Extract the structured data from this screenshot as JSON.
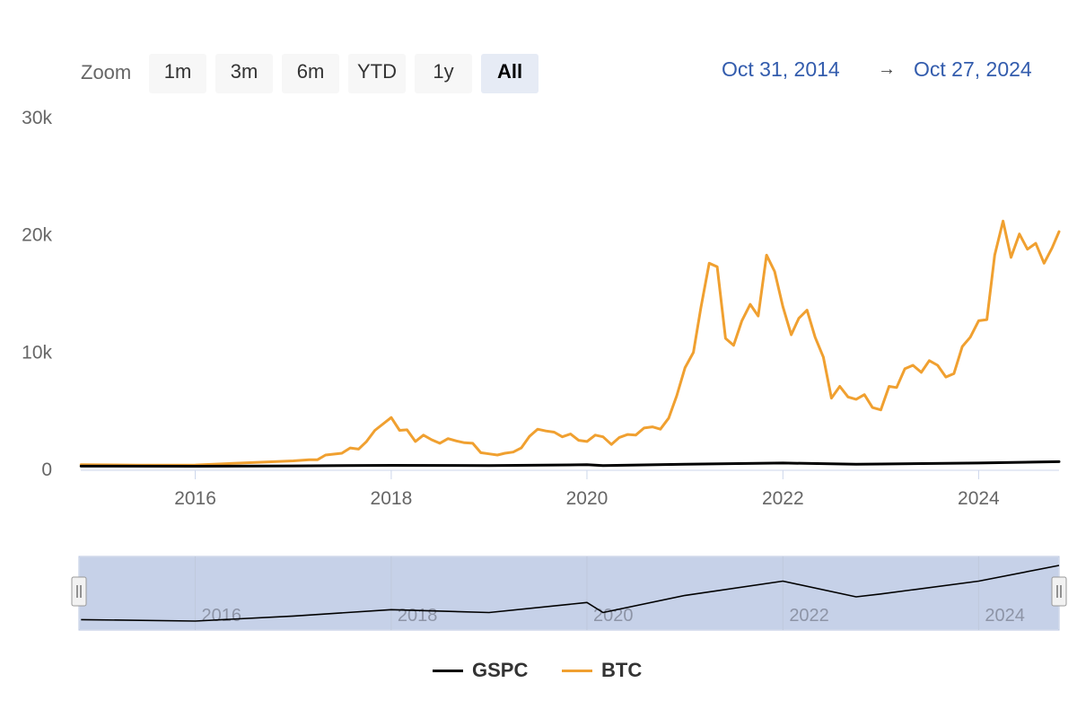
{
  "zoom": {
    "label": "Zoom",
    "buttons": [
      "1m",
      "3m",
      "6m",
      "YTD",
      "1y",
      "All"
    ],
    "active": "All"
  },
  "date_range": {
    "from": "Oct 31, 2014",
    "arrow": "→",
    "to": "Oct 27, 2024"
  },
  "legend": [
    {
      "name": "GSPC",
      "color": "#000000"
    },
    {
      "name": "BTC",
      "color": "#f0a030"
    }
  ],
  "navigator": {
    "tick_labels": [
      "2016",
      "2018",
      "2020",
      "2022",
      "2024"
    ]
  },
  "chart_data": {
    "type": "line",
    "title": "",
    "xlabel": "",
    "ylabel": "",
    "xlim": [
      "2014-10-31",
      "2024-10-27"
    ],
    "ylim": [
      0,
      30000
    ],
    "x_tick_labels": [
      "2016",
      "2018",
      "2020",
      "2022",
      "2024"
    ],
    "y_tick_labels": [
      "0",
      "10k",
      "20k",
      "30k"
    ],
    "y_ticks": [
      0,
      10000,
      20000,
      30000
    ],
    "x_ticks": [
      "2016-01-01",
      "2018-01-01",
      "2020-01-01",
      "2022-01-01",
      "2024-01-01"
    ],
    "grid": false,
    "legend_position": "bottom",
    "series": [
      {
        "name": "BTC",
        "color": "#f0a030",
        "points": [
          [
            "2014-11-01",
            330
          ],
          [
            "2015-06-01",
            280
          ],
          [
            "2016-01-01",
            300
          ],
          [
            "2016-06-01",
            450
          ],
          [
            "2017-01-01",
            650
          ],
          [
            "2017-03-01",
            750
          ],
          [
            "2017-04-01",
            750
          ],
          [
            "2017-05-01",
            1150
          ],
          [
            "2017-07-01",
            1300
          ],
          [
            "2017-08-01",
            1750
          ],
          [
            "2017-09-01",
            1650
          ],
          [
            "2017-10-01",
            2300
          ],
          [
            "2017-11-01",
            3250
          ],
          [
            "2018-01-01",
            4350
          ],
          [
            "2018-02-01",
            3250
          ],
          [
            "2018-03-01",
            3300
          ],
          [
            "2018-04-01",
            2300
          ],
          [
            "2018-05-01",
            2850
          ],
          [
            "2018-06-01",
            2450
          ],
          [
            "2018-07-01",
            2150
          ],
          [
            "2018-08-01",
            2550
          ],
          [
            "2018-09-01",
            2350
          ],
          [
            "2018-10-01",
            2200
          ],
          [
            "2018-11-01",
            2150
          ],
          [
            "2018-12-01",
            1350
          ],
          [
            "2019-01-01",
            1250
          ],
          [
            "2019-02-01",
            1150
          ],
          [
            "2019-03-01",
            1300
          ],
          [
            "2019-04-01",
            1400
          ],
          [
            "2019-05-01",
            1750
          ],
          [
            "2019-06-01",
            2750
          ],
          [
            "2019-07-01",
            3350
          ],
          [
            "2019-08-01",
            3200
          ],
          [
            "2019-09-01",
            3100
          ],
          [
            "2019-10-01",
            2700
          ],
          [
            "2019-11-01",
            2950
          ],
          [
            "2019-12-01",
            2400
          ],
          [
            "2020-01-01",
            2300
          ],
          [
            "2020-02-01",
            2850
          ],
          [
            "2020-03-01",
            2700
          ],
          [
            "2020-04-01",
            2050
          ],
          [
            "2020-05-01",
            2650
          ],
          [
            "2020-06-01",
            2900
          ],
          [
            "2020-07-01",
            2850
          ],
          [
            "2020-08-01",
            3450
          ],
          [
            "2020-09-01",
            3550
          ],
          [
            "2020-10-01",
            3350
          ],
          [
            "2020-11-01",
            4300
          ],
          [
            "2020-12-01",
            6200
          ],
          [
            "2021-01-01",
            8600
          ],
          [
            "2021-02-01",
            9900
          ],
          [
            "2021-03-01",
            13700
          ],
          [
            "2021-04-01",
            17500
          ],
          [
            "2021-05-01",
            17200
          ],
          [
            "2021-06-01",
            11100
          ],
          [
            "2021-07-01",
            10500
          ],
          [
            "2021-08-01",
            12600
          ],
          [
            "2021-09-01",
            14000
          ],
          [
            "2021-10-01",
            13000
          ],
          [
            "2021-11-01",
            18200
          ],
          [
            "2021-12-01",
            16800
          ],
          [
            "2022-01-01",
            13800
          ],
          [
            "2022-02-01",
            11400
          ],
          [
            "2022-03-01",
            12800
          ],
          [
            "2022-04-01",
            13500
          ],
          [
            "2022-05-01",
            11200
          ],
          [
            "2022-06-01",
            9500
          ],
          [
            "2022-07-01",
            6000
          ],
          [
            "2022-08-01",
            7000
          ],
          [
            "2022-09-01",
            6100
          ],
          [
            "2022-10-01",
            5900
          ],
          [
            "2022-11-01",
            6300
          ],
          [
            "2022-12-01",
            5200
          ],
          [
            "2023-01-01",
            5000
          ],
          [
            "2023-02-01",
            7000
          ],
          [
            "2023-03-01",
            6900
          ],
          [
            "2023-04-01",
            8500
          ],
          [
            "2023-05-01",
            8800
          ],
          [
            "2023-06-01",
            8200
          ],
          [
            "2023-07-01",
            9200
          ],
          [
            "2023-08-01",
            8800
          ],
          [
            "2023-09-01",
            7800
          ],
          [
            "2023-10-01",
            8100
          ],
          [
            "2023-11-01",
            10400
          ],
          [
            "2023-12-01",
            11200
          ],
          [
            "2024-01-01",
            12600
          ],
          [
            "2024-02-01",
            12700
          ],
          [
            "2024-03-01",
            18200
          ],
          [
            "2024-04-01",
            21100
          ],
          [
            "2024-05-01",
            18000
          ],
          [
            "2024-06-01",
            20000
          ],
          [
            "2024-07-01",
            18700
          ],
          [
            "2024-08-01",
            19200
          ],
          [
            "2024-09-01",
            17500
          ],
          [
            "2024-10-01",
            18800
          ],
          [
            "2024-10-27",
            20200
          ]
        ]
      },
      {
        "name": "GSPC",
        "color": "#000000",
        "points": [
          [
            "2014-11-01",
            200
          ],
          [
            "2016-01-01",
            190
          ],
          [
            "2017-01-01",
            225
          ],
          [
            "2018-01-01",
            270
          ],
          [
            "2019-01-01",
            250
          ],
          [
            "2020-01-01",
            320
          ],
          [
            "2020-03-01",
            250
          ],
          [
            "2021-01-01",
            370
          ],
          [
            "2022-01-01",
            470
          ],
          [
            "2022-10-01",
            360
          ],
          [
            "2023-01-01",
            380
          ],
          [
            "2024-01-01",
            470
          ],
          [
            "2024-10-27",
            580
          ]
        ]
      }
    ]
  }
}
